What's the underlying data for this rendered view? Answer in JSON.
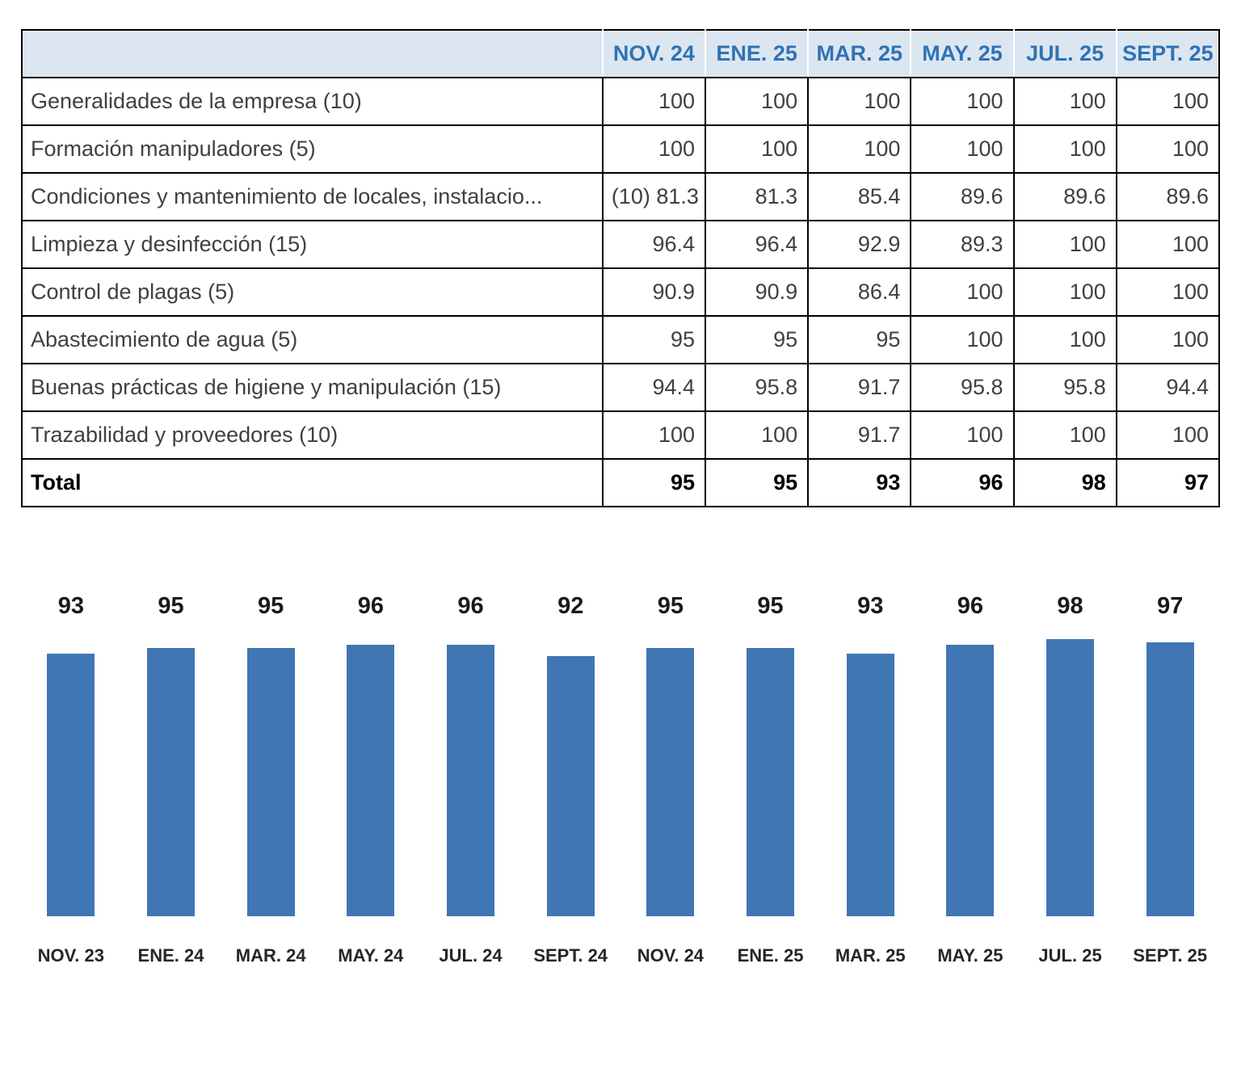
{
  "table": {
    "columns": [
      "",
      "NOV. 24",
      "ENE. 25",
      "MAR. 25",
      "MAY. 25",
      "JUL. 25",
      "SEPT. 25"
    ],
    "rows": [
      {
        "label": "Generalidades de la empresa (10)",
        "values": [
          "100",
          "100",
          "100",
          "100",
          "100",
          "100"
        ],
        "bold": false
      },
      {
        "label": "Formación manipuladores (5)",
        "values": [
          "100",
          "100",
          "100",
          "100",
          "100",
          "100"
        ],
        "bold": false
      },
      {
        "label": "Condiciones y mantenimiento de locales, instalacio...",
        "values": [
          "(10) 81.3",
          "81.3",
          "85.4",
          "89.6",
          "89.6",
          "89.6"
        ],
        "bold": false
      },
      {
        "label": "Limpieza y desinfección (15)",
        "values": [
          "96.4",
          "96.4",
          "92.9",
          "89.3",
          "100",
          "100"
        ],
        "bold": false
      },
      {
        "label": "Control de plagas (5)",
        "values": [
          "90.9",
          "90.9",
          "86.4",
          "100",
          "100",
          "100"
        ],
        "bold": false
      },
      {
        "label": "Abastecimiento de agua (5)",
        "values": [
          "95",
          "95",
          "95",
          "100",
          "100",
          "100"
        ],
        "bold": false
      },
      {
        "label": "Buenas prácticas de higiene y manipulación (15)",
        "values": [
          "94.4",
          "95.8",
          "91.7",
          "95.8",
          "95.8",
          "94.4"
        ],
        "bold": false
      },
      {
        "label": "Trazabilidad y proveedores (10)",
        "values": [
          "100",
          "100",
          "91.7",
          "100",
          "100",
          "100"
        ],
        "bold": false
      },
      {
        "label": "Total",
        "values": [
          "95",
          "95",
          "93",
          "96",
          "98",
          "97"
        ],
        "bold": true
      }
    ]
  },
  "chart_data": {
    "type": "bar",
    "categories": [
      "NOV. 23",
      "ENE. 24",
      "MAR. 24",
      "MAY. 24",
      "JUL. 24",
      "SEPT. 24",
      "NOV. 24",
      "ENE. 25",
      "MAR. 25",
      "MAY. 25",
      "JUL. 25",
      "SEPT. 25"
    ],
    "values": [
      93,
      95,
      95,
      96,
      96,
      92,
      95,
      95,
      93,
      96,
      98,
      97
    ],
    "title": "",
    "xlabel": "",
    "ylabel": "",
    "ylim": [
      0,
      100
    ],
    "grid": false,
    "legend_position": "none",
    "value_labels_shown": true,
    "bar_color": "#4076b4"
  },
  "colors": {
    "header_bg": "#dce6f1",
    "header_text": "#2e73b5",
    "bar": "#4076b4",
    "border": "#000000"
  }
}
